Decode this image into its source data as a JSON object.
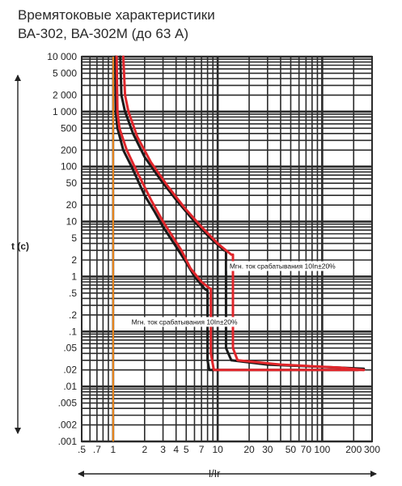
{
  "title_line1": "Времятоковые характеристики",
  "title_line2": "ВА-302, ВА-302М (до 63 А)",
  "chart_data": {
    "type": "line",
    "title": "Времятоковые характеристики ВА-302, ВА-302М (до 63 А)",
    "xlabel": "I/Ir",
    "ylabel": "t (c)",
    "x_scale": "log",
    "y_scale": "log",
    "xlim": [
      0.5,
      300
    ],
    "ylim": [
      0.001,
      10000
    ],
    "x_ticks": [
      0.5,
      0.7,
      1,
      2,
      3,
      4,
      5,
      7,
      10,
      20,
      30,
      50,
      70,
      100,
      200,
      300
    ],
    "x_tick_labels": [
      ".5",
      ".7",
      "1",
      "2",
      "3",
      "4",
      "5",
      "7",
      "10",
      "20",
      "30",
      "50",
      "70",
      "100",
      "200",
      "300"
    ],
    "y_ticks": [
      10000,
      5000,
      2000,
      1000,
      500,
      200,
      100,
      50,
      20,
      10,
      5,
      2,
      1,
      0.5,
      0.2,
      0.1,
      0.05,
      0.02,
      0.01,
      0.005,
      0.002,
      0.001
    ],
    "y_tick_labels": [
      "10 000",
      "5 000",
      "2 000",
      "1 000",
      "500",
      "200",
      "100",
      "50",
      "20",
      "10",
      "5",
      "2",
      "1",
      ".5",
      ".2",
      ".1",
      ".05",
      ".02",
      ".01",
      ".005",
      ".002",
      ".001"
    ],
    "grid": true,
    "reference_line": {
      "x": 1.0,
      "color": "#f08a1e"
    },
    "annotations": [
      {
        "text": "Мгн. ток срабатывания 10In±20%",
        "x": 13,
        "y": 1.4
      },
      {
        "text": "Мгн. ток срабатывания 10In±20%",
        "x": 1.5,
        "y": 0.135
      }
    ],
    "series": [
      {
        "color": "#1a1a1a",
        "points": [
          [
            1.05,
            10000
          ],
          [
            1.06,
            1000
          ],
          [
            1.1,
            500
          ],
          [
            1.25,
            200
          ],
          [
            1.5,
            100
          ],
          [
            2.0,
            30
          ],
          [
            2.5,
            15
          ],
          [
            3.0,
            8
          ],
          [
            4.0,
            3.5
          ],
          [
            5.0,
            1.8
          ],
          [
            6.0,
            1.0
          ],
          [
            7.5,
            0.6
          ],
          [
            8.0,
            0.55
          ],
          [
            8.0,
            0.03
          ],
          [
            8.3,
            0.02
          ],
          [
            15,
            0.02
          ],
          [
            220,
            0.02
          ]
        ]
      },
      {
        "color": "#e0262b",
        "points": [
          [
            1.08,
            10000
          ],
          [
            1.1,
            1000
          ],
          [
            1.15,
            500
          ],
          [
            1.35,
            200
          ],
          [
            1.6,
            100
          ],
          [
            2.3,
            25
          ],
          [
            3.0,
            10
          ],
          [
            4.5,
            3
          ],
          [
            5.5,
            1.4
          ],
          [
            7.0,
            0.8
          ],
          [
            8.5,
            0.6
          ],
          [
            8.6,
            0.6
          ],
          [
            8.6,
            0.04
          ],
          [
            9.2,
            0.02
          ],
          [
            25,
            0.02
          ],
          [
            250,
            0.02
          ]
        ]
      },
      {
        "color": "#1a1a1a",
        "points": [
          [
            1.17,
            10000
          ],
          [
            1.2,
            2000
          ],
          [
            1.3,
            1000
          ],
          [
            1.55,
            400
          ],
          [
            2.0,
            150
          ],
          [
            2.8,
            60
          ],
          [
            4.0,
            25
          ],
          [
            6.0,
            10
          ],
          [
            8.5,
            5
          ],
          [
            11.5,
            3
          ],
          [
            12.0,
            3
          ],
          [
            12.0,
            0.05
          ],
          [
            13.5,
            0.03
          ],
          [
            30,
            0.025
          ],
          [
            150,
            0.022
          ],
          [
            250,
            0.021
          ]
        ]
      },
      {
        "color": "#e0262b",
        "points": [
          [
            1.25,
            10000
          ],
          [
            1.3,
            2000
          ],
          [
            1.4,
            1000
          ],
          [
            1.7,
            350
          ],
          [
            2.3,
            120
          ],
          [
            3.3,
            45
          ],
          [
            4.8,
            18
          ],
          [
            7.0,
            8
          ],
          [
            10.0,
            4
          ],
          [
            13.5,
            2.5
          ],
          [
            14.0,
            2.5
          ],
          [
            14.0,
            0.05
          ],
          [
            15.5,
            0.03
          ],
          [
            40,
            0.025
          ],
          [
            150,
            0.022
          ],
          [
            250,
            0.02
          ]
        ]
      }
    ]
  }
}
